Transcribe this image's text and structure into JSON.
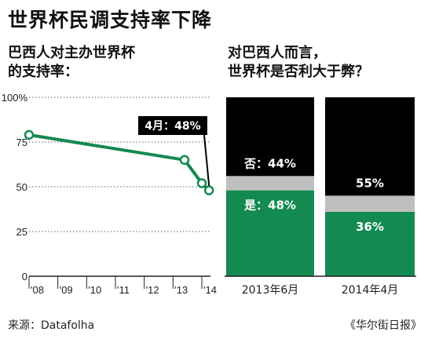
{
  "header": {
    "title": "世界杯民调支持率下降",
    "left_subtitle_line1": "巴西人对主办世界杯",
    "left_subtitle_line2": "的支持率：",
    "right_subtitle_line1": "对巴西人而言，",
    "right_subtitle_line2": "世界杯是否利大于弊？"
  },
  "footer": {
    "source": "来源：Datafolha",
    "publisher": "《华尔街日报》"
  },
  "colors": {
    "green": "#138a4f",
    "black": "#000000",
    "gray": "#bfbfbf"
  },
  "chart_data": [
    {
      "type": "line",
      "x_tick_labels": [
        "'08",
        "'09",
        "'10",
        "'11",
        "'12",
        "'13",
        "'14"
      ],
      "y_ticks": [
        0,
        25,
        50,
        75,
        100
      ],
      "y_tick_labels": [
        "0",
        "25",
        "50",
        "75",
        "100%"
      ],
      "ylim": [
        0,
        100
      ],
      "points": [
        {
          "x": 2008.0,
          "y": 79
        },
        {
          "x": 2013.4,
          "y": 65
        },
        {
          "x": 2014.0,
          "y": 52
        },
        {
          "x": 2014.25,
          "y": 48
        }
      ],
      "annotation": "4月：48%",
      "grid": "dotted horizontal"
    },
    {
      "type": "bar",
      "stacked": true,
      "categories": [
        "2013年6月",
        "2014年4月"
      ],
      "series": [
        {
          "name": "是",
          "color": "#138a4f",
          "values": [
            48,
            36
          ]
        },
        {
          "name": "",
          "color": "#bfbfbf",
          "values": [
            8,
            9
          ]
        },
        {
          "name": "否",
          "color": "#000000",
          "values": [
            44,
            55
          ]
        }
      ],
      "labels": {
        "yes_2013": "是：48%",
        "no_2013": "否：44%",
        "yes_2014": "36%",
        "no_2014": "55%"
      }
    }
  ]
}
